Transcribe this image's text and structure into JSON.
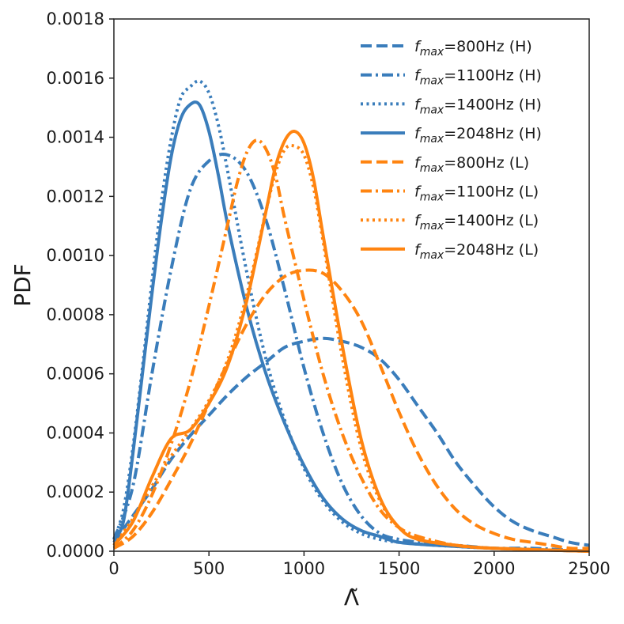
{
  "chart_data": {
    "type": "line",
    "title": "",
    "xlabel": "Λ̃",
    "ylabel": "PDF",
    "xlim": [
      0,
      2500
    ],
    "ylim": [
      0,
      0.0018
    ],
    "xticks": [
      0,
      500,
      1000,
      1500,
      2000,
      2500
    ],
    "xtick_labels": [
      "0",
      "500",
      "1000",
      "1500",
      "2000",
      "2500"
    ],
    "yticks": [
      0,
      0.0002,
      0.0004,
      0.0006,
      0.0008,
      0.001,
      0.0012,
      0.0014,
      0.0016,
      0.0018
    ],
    "ytick_labels": [
      "0.0000",
      "0.0002",
      "0.0004",
      "0.0006",
      "0.0008",
      "0.0010",
      "0.0012",
      "0.0014",
      "0.0016",
      "0.0018"
    ],
    "grid": false,
    "legend_position": "top-right",
    "series": [
      {
        "name": "f_max=800Hz (H)",
        "legend_prefix": "f",
        "legend_sub": "max",
        "legend_suffix": "=800Hz (H)",
        "color": "#3a7dbb",
        "dash": "dashed",
        "x": [
          0,
          100,
          200,
          300,
          400,
          500,
          600,
          700,
          800,
          900,
          1000,
          1100,
          1200,
          1300,
          1400,
          1500,
          1600,
          1700,
          1800,
          1900,
          2000,
          2100,
          2200,
          2300,
          2400,
          2500
        ],
        "y": [
          3e-05,
          0.00012,
          0.00021,
          0.00031,
          0.00039,
          0.00046,
          0.00053,
          0.00059,
          0.00064,
          0.00069,
          0.00071,
          0.00072,
          0.00071,
          0.00069,
          0.00065,
          0.00058,
          0.00049,
          0.0004,
          0.0003,
          0.00022,
          0.00015,
          0.0001,
          7e-05,
          5e-05,
          3e-05,
          2e-05
        ]
      },
      {
        "name": "f_max=1100Hz (H)",
        "legend_prefix": "f",
        "legend_sub": "max",
        "legend_suffix": "=1100Hz (H)",
        "color": "#3a7dbb",
        "dash": "dashdot",
        "x": [
          0,
          100,
          200,
          300,
          400,
          500,
          600,
          700,
          800,
          900,
          1000,
          1100,
          1200,
          1300,
          1400,
          1500,
          1600,
          1700,
          1800,
          2000,
          2200,
          2500
        ],
        "y": [
          4e-05,
          0.00022,
          0.0006,
          0.00095,
          0.00122,
          0.00132,
          0.00134,
          0.00128,
          0.00112,
          0.00088,
          0.00062,
          0.0004,
          0.00023,
          0.00012,
          6e-05,
          4e-05,
          3e-05,
          2e-05,
          2e-05,
          1e-05,
          1e-05,
          0.0
        ]
      },
      {
        "name": "f_max=1400Hz (H)",
        "legend_prefix": "f",
        "legend_sub": "max",
        "legend_suffix": "=1400Hz (H)",
        "color": "#3a7dbb",
        "dash": "dotted",
        "x": [
          0,
          50,
          100,
          150,
          200,
          250,
          300,
          350,
          400,
          450,
          500,
          550,
          600,
          700,
          800,
          900,
          1000,
          1100,
          1200,
          1300,
          1400,
          1500,
          1700,
          2000,
          2500
        ],
        "y": [
          4e-05,
          0.00014,
          0.00035,
          0.00062,
          0.00091,
          0.00118,
          0.00139,
          0.00153,
          0.00157,
          0.00159,
          0.00155,
          0.00144,
          0.00128,
          0.00094,
          0.00065,
          0.00044,
          0.00028,
          0.00017,
          0.0001,
          6e-05,
          4e-05,
          3e-05,
          2e-05,
          1e-05,
          0.0
        ]
      },
      {
        "name": "f_max=2048Hz (H)",
        "legend_prefix": "f",
        "legend_sub": "max",
        "legend_suffix": "=2048Hz (H)",
        "color": "#3a7dbb",
        "dash": "solid",
        "x": [
          0,
          50,
          100,
          150,
          200,
          250,
          300,
          350,
          400,
          450,
          500,
          550,
          600,
          700,
          800,
          900,
          1000,
          1100,
          1200,
          1300,
          1400,
          1500,
          1700,
          2000,
          2500
        ],
        "y": [
          4e-05,
          0.0001,
          0.00033,
          0.0006,
          0.00087,
          0.00112,
          0.00133,
          0.00146,
          0.00151,
          0.00151,
          0.00142,
          0.00127,
          0.0011,
          0.00082,
          0.0006,
          0.00043,
          0.00029,
          0.00018,
          0.00011,
          7e-05,
          5e-05,
          3e-05,
          2e-05,
          1e-05,
          0.0
        ]
      },
      {
        "name": "f_max=800Hz (L)",
        "legend_prefix": "f",
        "legend_sub": "max",
        "legend_suffix": "=800Hz (L)",
        "color": "#ff8410",
        "dash": "dashed",
        "x": [
          0,
          100,
          200,
          300,
          400,
          500,
          600,
          700,
          800,
          900,
          1000,
          1100,
          1200,
          1300,
          1400,
          1500,
          1600,
          1700,
          1800,
          1900,
          2000,
          2100,
          2200,
          2300,
          2400,
          2500
        ],
        "y": [
          1e-05,
          5e-05,
          0.00013,
          0.00024,
          0.00036,
          0.0005,
          0.00064,
          0.00077,
          0.00087,
          0.00093,
          0.00095,
          0.00094,
          0.00088,
          0.00078,
          0.00063,
          0.00047,
          0.00033,
          0.00022,
          0.00014,
          9e-05,
          6e-05,
          4e-05,
          3e-05,
          2e-05,
          1e-05,
          1e-05
        ]
      },
      {
        "name": "f_max=1100Hz (L)",
        "legend_prefix": "f",
        "legend_sub": "max",
        "legend_suffix": "=1100Hz (L)",
        "color": "#ff8410",
        "dash": "dashdot",
        "x": [
          0,
          100,
          200,
          300,
          400,
          500,
          600,
          650,
          700,
          750,
          800,
          850,
          900,
          1000,
          1100,
          1200,
          1300,
          1400,
          1500,
          1600,
          1800,
          2000,
          2500
        ],
        "y": [
          1e-05,
          7e-05,
          0.00019,
          0.00036,
          0.00057,
          0.00083,
          0.00111,
          0.00125,
          0.00135,
          0.00139,
          0.00136,
          0.00127,
          0.00112,
          0.00085,
          0.0006,
          0.0004,
          0.00025,
          0.00014,
          8e-05,
          5e-05,
          2e-05,
          1e-05,
          0.0
        ]
      },
      {
        "name": "f_max=1400Hz (L)",
        "legend_prefix": "f",
        "legend_sub": "max",
        "legend_suffix": "=1400Hz (L)",
        "color": "#ff8410",
        "dash": "dotted",
        "x": [
          0,
          100,
          200,
          300,
          400,
          500,
          600,
          700,
          800,
          850,
          900,
          950,
          1000,
          1050,
          1100,
          1200,
          1300,
          1400,
          1500,
          1600,
          1800,
          2000,
          2500
        ],
        "y": [
          2e-05,
          0.00011,
          0.00022,
          0.00032,
          0.00041,
          0.00051,
          0.00065,
          0.00087,
          0.00115,
          0.00128,
          0.00136,
          0.00137,
          0.00134,
          0.00123,
          0.00105,
          0.00066,
          0.00035,
          0.00017,
          8e-05,
          4e-05,
          2e-05,
          1e-05,
          0.0
        ]
      },
      {
        "name": "f_max=2048Hz (L)",
        "legend_prefix": "f",
        "legend_sub": "max",
        "legend_suffix": "=2048Hz (L)",
        "color": "#ff8410",
        "dash": "solid",
        "x": [
          0,
          100,
          200,
          300,
          400,
          500,
          600,
          700,
          800,
          850,
          900,
          950,
          1000,
          1050,
          1100,
          1200,
          1300,
          1400,
          1500,
          1600,
          1800,
          2000,
          2500
        ],
        "y": [
          2e-05,
          0.0001,
          0.00025,
          0.00038,
          0.00041,
          0.0005,
          0.00063,
          0.00085,
          0.00115,
          0.0013,
          0.00139,
          0.00142,
          0.00138,
          0.00126,
          0.00107,
          0.0007,
          0.00038,
          0.00018,
          8e-05,
          4e-05,
          2e-05,
          1e-05,
          0.0
        ]
      }
    ]
  }
}
